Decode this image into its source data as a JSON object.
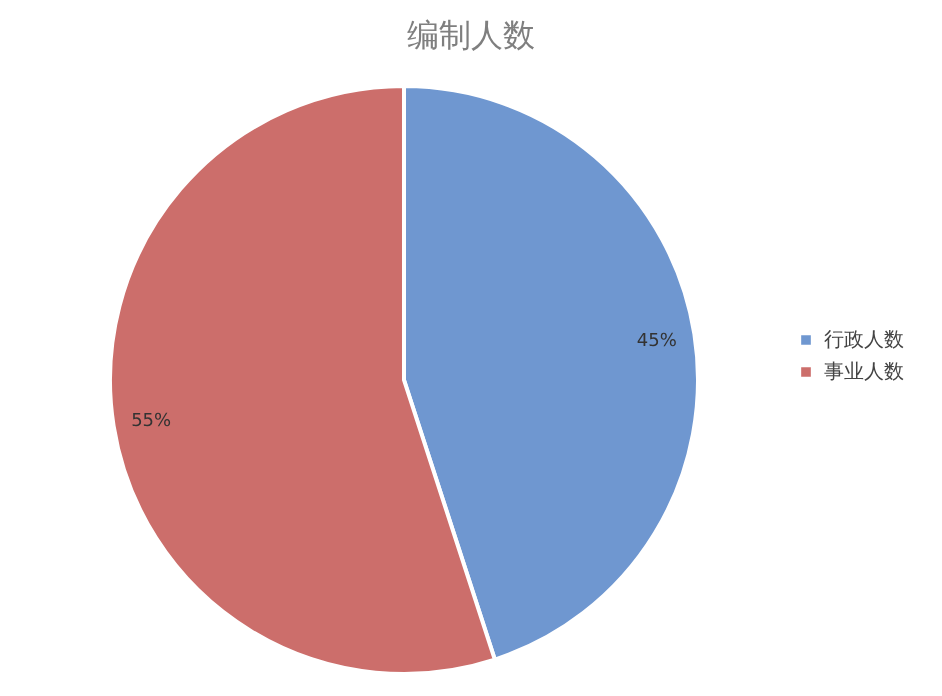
{
  "chart_data": {
    "type": "pie",
    "title": "编制人数",
    "categories": [
      "行政人数",
      "事业人数"
    ],
    "values": [
      45,
      55
    ],
    "colors": [
      "#6f97d0",
      "#cc6e6b"
    ],
    "value_labels": [
      "45%",
      "55%"
    ],
    "legend": "right"
  }
}
